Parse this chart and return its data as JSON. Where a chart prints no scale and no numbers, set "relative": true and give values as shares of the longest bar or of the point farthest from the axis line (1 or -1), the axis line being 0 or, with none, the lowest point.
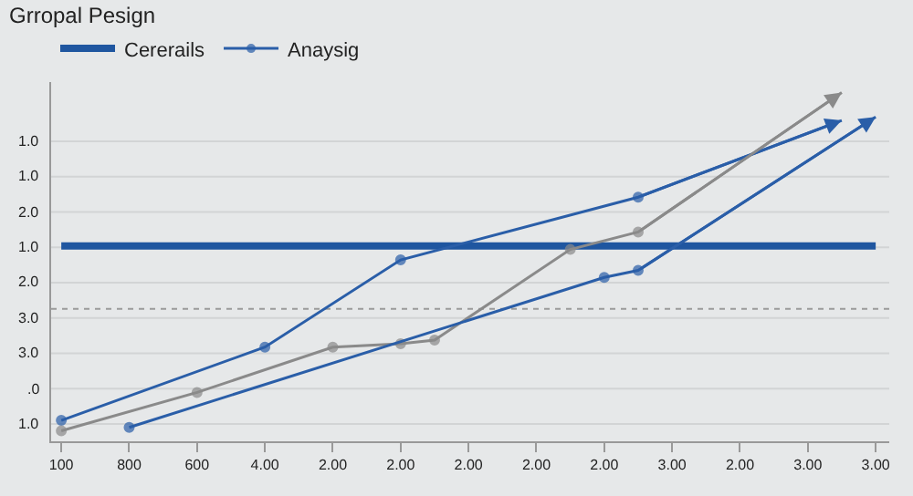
{
  "chart_data": {
    "type": "line",
    "title": "Grropal Pesign",
    "relative": true,
    "categories": [
      "100",
      null,
      "800",
      null,
      "600",
      null,
      "4.00",
      null,
      "2.00",
      null,
      "2.00",
      null,
      "2.00",
      null,
      "2.00",
      null,
      "2.00",
      null,
      "3.00",
      null,
      "2.00",
      null,
      "3.00",
      null,
      "3.00"
    ],
    "series": [
      {
        "name": "Cererails",
        "color": "#1f56a0",
        "values": [
          0.56,
          null,
          null,
          null,
          null,
          null,
          null,
          null,
          null,
          null,
          null,
          null,
          null,
          null,
          null,
          null,
          null,
          null,
          null,
          null,
          null,
          null,
          null,
          null,
          0.56
        ],
        "marker": "none"
      },
      {
        "name": "Anaysig",
        "color": "#2a5ea8",
        "values": [
          0.06,
          null,
          null,
          null,
          null,
          null,
          0.27,
          null,
          null,
          null,
          0.52,
          null,
          null,
          null,
          null,
          null,
          null,
          0.7,
          null,
          null,
          null,
          null,
          null,
          0.92,
          null
        ],
        "marker": "circle"
      },
      {
        "color": "#8a8a8a",
        "values": [
          0.03,
          null,
          null,
          null,
          0.14,
          null,
          null,
          null,
          0.27,
          null,
          0.28,
          0.29,
          null,
          null,
          null,
          0.55,
          null,
          0.6,
          null,
          null,
          null,
          null,
          null,
          1.0,
          null
        ],
        "marker": "circle"
      },
      {
        "color": "#2a5ea8",
        "values": [
          null,
          null,
          0.04,
          null,
          null,
          null,
          null,
          null,
          null,
          null,
          null,
          null,
          null,
          null,
          null,
          null,
          0.47,
          0.49,
          null,
          null,
          null,
          null,
          null,
          null,
          0.93
        ],
        "marker": "circle"
      }
    ],
    "annotations": [
      "1.0",
      ".0",
      "3.0",
      "3.0",
      "2.0",
      "1.0",
      "2.0",
      "1.0",
      "1.0"
    ],
    "ref_lines": [
      {
        "axis": "y",
        "value": 0.38,
        "color": "#9a9a9a",
        "line_style": "dotted"
      }
    ],
    "grid": "y",
    "legend": "top left"
  }
}
